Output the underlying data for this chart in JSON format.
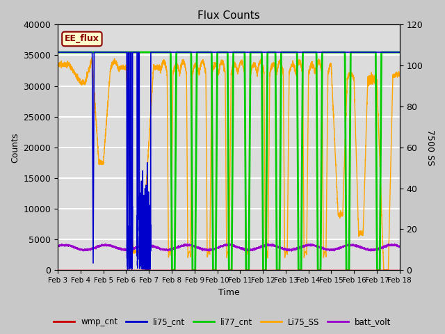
{
  "title": "Flux Counts",
  "xlabel": "Time",
  "ylabel_left": "Counts",
  "ylabel_right": "7500 SS",
  "annotation_text": "EE_flux",
  "annotation_bg": "#FFFFCC",
  "annotation_border": "#8B0000",
  "xlim": [
    0,
    15
  ],
  "ylim_left": [
    0,
    40000
  ],
  "ylim_right": [
    0,
    120
  ],
  "xtick_labels": [
    "Feb 3",
    "Feb 4",
    "Feb 5",
    "Feb 6",
    "Feb 7",
    "Feb 8",
    "Feb 9",
    "Feb 10",
    "Feb 11",
    "Feb 12",
    "Feb 13",
    "Feb 14",
    "Feb 15",
    "Feb 16",
    "Feb 17",
    "Feb 18"
  ],
  "xtick_positions": [
    0,
    1,
    2,
    3,
    4,
    5,
    6,
    7,
    8,
    9,
    10,
    11,
    12,
    13,
    14,
    15
  ],
  "ytick_left": [
    0,
    5000,
    10000,
    15000,
    20000,
    25000,
    30000,
    35000,
    40000
  ],
  "ytick_right": [
    0,
    20,
    40,
    60,
    80,
    100,
    120
  ],
  "bg_outer": "#D0D0D0",
  "bg_inner": "#E8E8E8",
  "grid_color": "#C8C8C8",
  "legend_entries": [
    {
      "label": "wmp_cnt",
      "color": "#CC0000"
    },
    {
      "label": "li75_cnt",
      "color": "#0000CC"
    },
    {
      "label": "li77_cnt",
      "color": "#00CC00"
    },
    {
      "label": "Li75_SS",
      "color": "#FFA500"
    },
    {
      "label": "batt_volt",
      "color": "#9900CC"
    }
  ],
  "figsize": [
    6.4,
    4.8
  ],
  "dpi": 100
}
